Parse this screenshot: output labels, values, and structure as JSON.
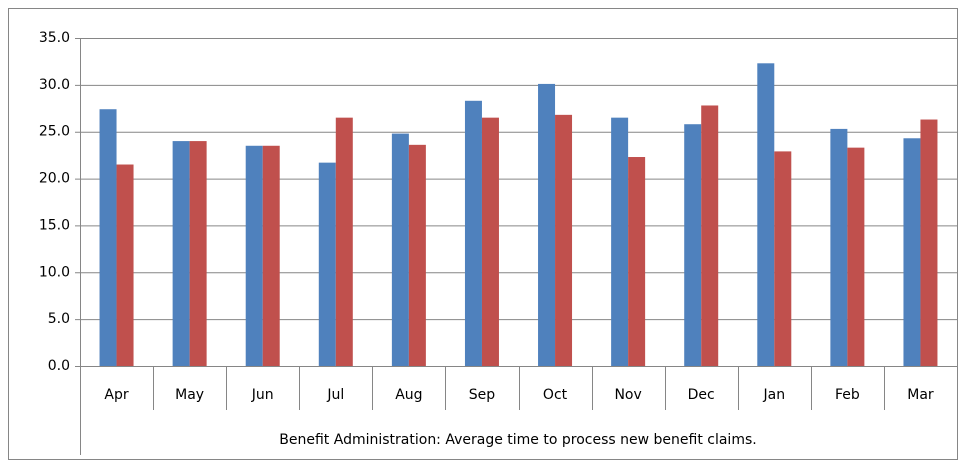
{
  "chart_data": {
    "type": "bar",
    "categories": [
      "Apr",
      "May",
      "Jun",
      "Jul",
      "Aug",
      "Sep",
      "Oct",
      "Nov",
      "Dec",
      "Jan",
      "Feb",
      "Mar"
    ],
    "xlabel": "Benefit Administration: Average time to process new  benefit claims.",
    "series": [
      {
        "color": "#4f81bd",
        "values": [
          27.4,
          24.0,
          23.5,
          21.7,
          24.8,
          28.3,
          30.1,
          26.5,
          25.8,
          32.3,
          25.3,
          24.3
        ]
      },
      {
        "color": "#c0504d",
        "values": [
          21.5,
          24.0,
          23.5,
          26.5,
          23.6,
          26.5,
          26.8,
          22.3,
          27.8,
          22.9,
          23.3,
          26.3
        ]
      }
    ],
    "ylim": [
      0,
      35
    ],
    "yticks": [
      {
        "value": 0,
        "label": "0.0"
      },
      {
        "value": 5,
        "label": "5.0"
      },
      {
        "value": 10,
        "label": "10.0"
      },
      {
        "value": 15,
        "label": "15.0"
      },
      {
        "value": 20,
        "label": "20.0"
      },
      {
        "value": 25,
        "label": "25.0"
      },
      {
        "value": 30,
        "label": "30.0"
      },
      {
        "value": 35,
        "label": "35.0"
      }
    ],
    "grid": true
  }
}
